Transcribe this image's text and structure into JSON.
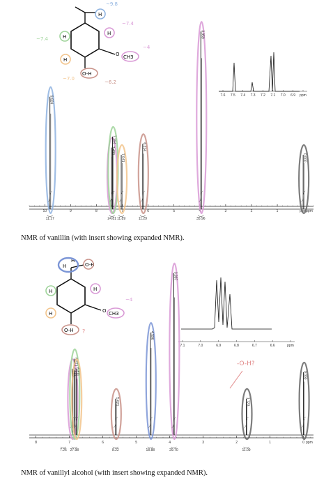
{
  "chart_data": [
    {
      "type": "line",
      "caption": "NMR of vanillin (with insert showing expanded NMR).",
      "xlim": [
        10.6,
        -0.4
      ],
      "ticks": [
        "10",
        "9",
        "8",
        "7",
        "6",
        "5",
        "4",
        "3",
        "2",
        "1",
        "ppm"
      ],
      "tick_values": [
        10,
        9,
        8,
        7,
        6,
        5,
        4,
        3,
        2,
        1,
        0
      ],
      "peaks": [
        {
          "ppm": 9.8,
          "height": 0.62,
          "label": "9.824",
          "color": "#8fb3e0",
          "name": "aldehyde-peak"
        },
        {
          "ppm": 7.42,
          "height": 0.34,
          "label": "7.430",
          "color": "#d99ad6",
          "name": "aromatic-peak"
        },
        {
          "ppm": 7.38,
          "height": 0.4,
          "label": "7.394",
          "color": "#9fd49a",
          "name": "aromatic-peak"
        },
        {
          "ppm": 7.04,
          "height": 0.3,
          "label": "7.041",
          "color": "#f2c48c",
          "name": "aromatic-peak"
        },
        {
          "ppm": 6.21,
          "height": 0.36,
          "label": "6.214",
          "color": "#c9938a",
          "name": "hydroxyl-peak"
        },
        {
          "ppm": 3.96,
          "height": 0.98,
          "label": "3.959",
          "color": "#d99ad6",
          "name": "methoxy-peak"
        },
        {
          "ppm": 0.0,
          "height": 0.3,
          "label": "0.000",
          "color": "#666666",
          "name": "tms-peak"
        }
      ],
      "integrals": [
        "11.17",
        "24.81",
        "11.89",
        "11.29",
        "35.96"
      ],
      "annotations": [
        "~9.8",
        "~7.4",
        "~7.4",
        "~7.0",
        "~6.2",
        "~4"
      ],
      "inset": {
        "ticks": [
          "7.6",
          "7.5",
          "7.4",
          "7.3",
          "7.2",
          "7.1",
          "7.0",
          "6.9",
          "ppm"
        ],
        "xlim": [
          7.65,
          6.85
        ]
      }
    },
    {
      "type": "line",
      "caption": "NMR of vanillyl alcohol (with insert showing expanded NMR).",
      "xlim": [
        8.2,
        -0.3
      ],
      "ticks": [
        "8",
        "7",
        "6",
        "5",
        "4",
        "3",
        "2",
        "1",
        "0",
        "ppm"
      ],
      "tick_values": [
        8,
        7,
        6,
        5,
        4,
        3,
        2,
        1,
        0
      ],
      "peaks": [
        {
          "ppm": 6.92,
          "height": 0.4,
          "label": "6.913",
          "color": "#d99ad6",
          "name": "aromatic-peak"
        },
        {
          "ppm": 6.86,
          "height": 0.46,
          "label": "6.871",
          "color": "#9fd49a",
          "name": "aromatic-peak"
        },
        {
          "ppm": 6.8,
          "height": 0.4,
          "label": "6.811",
          "color": "#f2c48c",
          "name": "aromatic-peak"
        },
        {
          "ppm": 5.62,
          "height": 0.22,
          "label": "5.621",
          "color": "#c9938a",
          "name": "hydroxyl-peak"
        },
        {
          "ppm": 4.58,
          "height": 0.62,
          "label": "4.596",
          "color": "#7b95d6",
          "name": "methylene-peak"
        },
        {
          "ppm": 3.88,
          "height": 0.98,
          "label": "3.887",
          "color": "#d99ad6",
          "name": "methoxy-peak"
        },
        {
          "ppm": 1.71,
          "height": 0.22,
          "label": "1.723",
          "color": "#666666",
          "name": "alcohol-oh-peak"
        },
        {
          "ppm": 0.0,
          "height": 0.38,
          "label": "0.000",
          "color": "#666666",
          "name": "tms-peak"
        }
      ],
      "integrals": [
        "7.25",
        "27.98",
        "8.22",
        "18.88",
        "29.70",
        "11.09"
      ],
      "annotations": [
        "~4",
        "?",
        "-O-H?"
      ],
      "inset": {
        "ticks": [
          "7.1",
          "7.0",
          "6.9",
          "6.8",
          "6.7",
          "6.6",
          "ppm"
        ],
        "xlim": [
          7.15,
          6.55
        ]
      }
    }
  ]
}
